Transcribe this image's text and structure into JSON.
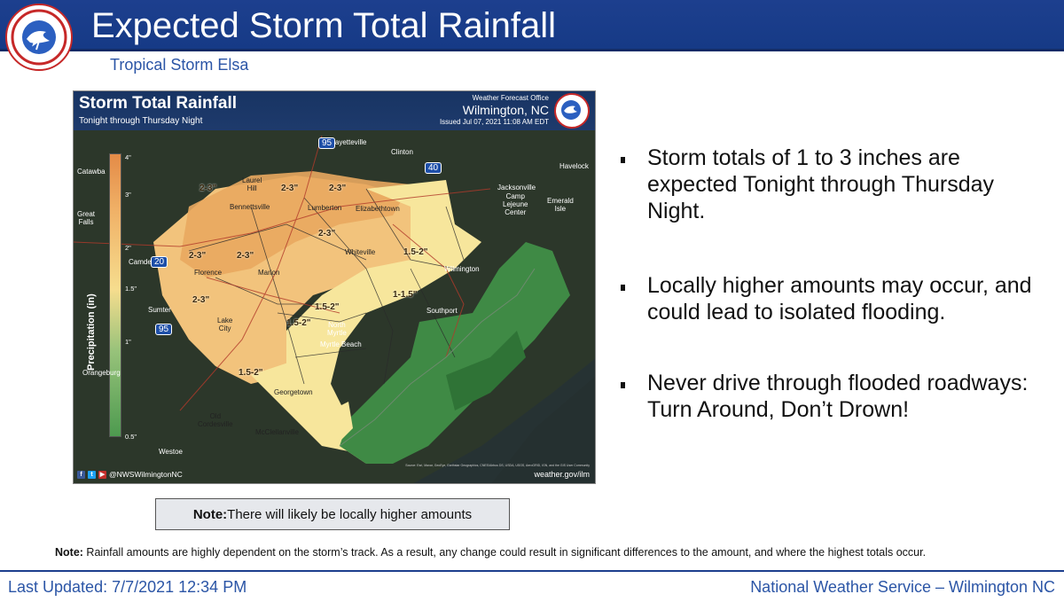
{
  "header": {
    "title": "Expected Storm Total Rainfall",
    "subtitle": "Tropical Storm Elsa",
    "logo_icon": "nws-logo-icon"
  },
  "map": {
    "title": "Storm Total Rainfall",
    "subtitle": "Tonight through Thursday Night",
    "wfo_label": "Weather Forecast Office",
    "wfo_city": "Wilmington, NC",
    "issued": "Issued Jul 07, 2021 11:08 AM EDT",
    "social_handle": "@NWSWilmingtonNC",
    "website": "weather.gov/ilm",
    "source": "Source: Esri, Maxar, GeoEye, Earthstar Geographics, CNES/Airbus DS, USDA, USGS, AeroGRID, IGN, and the GIS User Community",
    "legend": {
      "axis_label": "Precipitation (in)",
      "labels": [
        "4\"",
        "3\"",
        "2\"",
        "1.5\"",
        "1\"",
        "0.5\""
      ]
    },
    "places": {
      "catawba": "Catawba",
      "great_falls": "Great\nFalls",
      "camden": "Camden",
      "sumter": "Sumter",
      "orangeburg": "Orangeburg",
      "westoe": "Westoe",
      "old_cordesville": "Old\nCordesville",
      "mcclellanville": "McClellanville",
      "georgetown": "Georgetown",
      "lake_city": "Lake\nCity",
      "florence": "Florence",
      "marion": "Marion",
      "laurel_hill": "Laurel\nHill",
      "bennettsville": "Bennettsville",
      "fayetteville": "Fayetteville",
      "lumberton": "Lumberton",
      "elizabethtown": "Elizabethtown",
      "clinton": "Clinton",
      "whiteville": "Whiteville",
      "wilmington": "Wilmington",
      "southport": "Southport",
      "north_myrtle_beach": "North\nMyrtle",
      "myrtle_beach": "Myrtle Beach",
      "jacksonville": "Jacksonville",
      "camp_lejeune": "Camp\nLejeune\nCenter",
      "emerald_isle": "Emerald\nIsle",
      "havelock": "Havelock"
    },
    "interstates": [
      "20",
      "95",
      "95",
      "40"
    ],
    "amounts": [
      "2-3\"",
      "2-3\"",
      "2-3\"",
      "2-3\"",
      "2-3\"",
      "2-3\"",
      "2-3\"",
      "1.5-2\"",
      "1-1.5\"",
      "1.5-2\"",
      "1.5-2\"",
      "1.5-2\""
    ]
  },
  "bullets": [
    "Storm totals of 1 to 3 inches are expected Tonight through Thursday Night.",
    "Locally higher amounts may occur, and could lead to isolated flooding.",
    "Never drive through flooded roadways: Turn Around, Don’t Drown!"
  ],
  "note_box": {
    "label": "Note:",
    "text": "There will likely be locally higher amounts"
  },
  "bottom_note": {
    "label": "Note:",
    "text": " Rainfall amounts are highly dependent on the storm’s track. As a result, any change could result in significant differences to the amount, and where the highest totals occur."
  },
  "footer": {
    "last_updated": "Last Updated:  7/7/2021 12:34 PM",
    "office": "National Weather Service – Wilmington NC"
  }
}
